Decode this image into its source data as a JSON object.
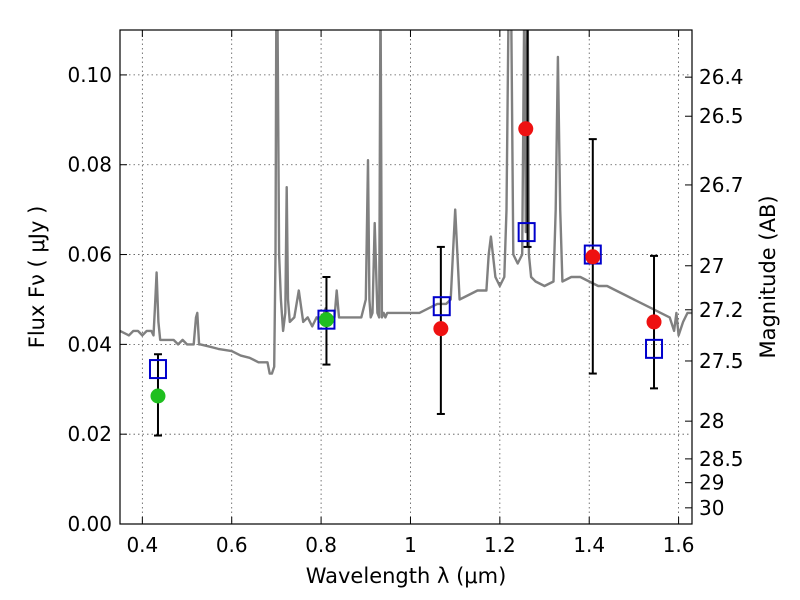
{
  "chart_data": {
    "type": "scatter",
    "title": "",
    "xlabel": "Wavelength  λ (μm)",
    "ylabel": "Flux  Fν  ( μJy )",
    "ylabel_right": "Magnitude (AB)",
    "xlim": [
      0.35,
      1.63
    ],
    "ylim": [
      0.0,
      0.11
    ],
    "grid": true,
    "x_ticks": [
      0.4,
      0.6,
      0.8,
      1.0,
      1.2,
      1.4,
      1.6
    ],
    "x_tick_labels": [
      "0.4",
      "0.6",
      "0.8",
      "1",
      "1.2",
      "1.4",
      "1.6"
    ],
    "y_ticks": [
      0.0,
      0.02,
      0.04,
      0.06,
      0.08,
      0.1
    ],
    "y_tick_labels": [
      "0.00",
      "0.02",
      "0.04",
      "0.06",
      "0.08",
      "0.10"
    ],
    "right_ticks": [
      {
        "flux": 0.0995,
        "label": "26.4"
      },
      {
        "flux": 0.0908,
        "label": "26.5"
      },
      {
        "flux": 0.0755,
        "label": "26.7"
      },
      {
        "flux": 0.0575,
        "label": "27"
      },
      {
        "flux": 0.0477,
        "label": "27.2"
      },
      {
        "flux": 0.0363,
        "label": "27.5"
      },
      {
        "flux": 0.0229,
        "label": "28"
      },
      {
        "flux": 0.0145,
        "label": "28.5"
      },
      {
        "flux": 0.0092,
        "label": "29"
      },
      {
        "flux": 0.0036,
        "label": "30"
      }
    ],
    "series": [
      {
        "kind": "line",
        "color": "#808080",
        "x": [
          0.35,
          0.37,
          0.38,
          0.39,
          0.4,
          0.41,
          0.42,
          0.425,
          0.428,
          0.432,
          0.436,
          0.44,
          0.45,
          0.46,
          0.47,
          0.48,
          0.49,
          0.5,
          0.51,
          0.515,
          0.52,
          0.523,
          0.527,
          0.53,
          0.55,
          0.57,
          0.6,
          0.62,
          0.64,
          0.66,
          0.68,
          0.685,
          0.69,
          0.695,
          0.698,
          0.7,
          0.702,
          0.706,
          0.71,
          0.715,
          0.72,
          0.723,
          0.726,
          0.73,
          0.74,
          0.75,
          0.76,
          0.77,
          0.78,
          0.79,
          0.8,
          0.81,
          0.82,
          0.83,
          0.835,
          0.84,
          0.85,
          0.87,
          0.89,
          0.9,
          0.905,
          0.908,
          0.911,
          0.915,
          0.92,
          0.926,
          0.93,
          0.933,
          0.936,
          0.94,
          0.944,
          0.948,
          0.96,
          0.98,
          1.0,
          1.02,
          1.04,
          1.06,
          1.08,
          1.09,
          1.095,
          1.1,
          1.105,
          1.11,
          1.13,
          1.15,
          1.17,
          1.175,
          1.18,
          1.19,
          1.2,
          1.21,
          1.215,
          1.22,
          1.225,
          1.23,
          1.24,
          1.25,
          1.255,
          1.258,
          1.262,
          1.265,
          1.27,
          1.28,
          1.3,
          1.32,
          1.325,
          1.33,
          1.335,
          1.34,
          1.36,
          1.38,
          1.4,
          1.42,
          1.44,
          1.46,
          1.48,
          1.5,
          1.52,
          1.54,
          1.56,
          1.58,
          1.59,
          1.595,
          1.6,
          1.61,
          1.62,
          1.63
        ],
        "y": [
          0.043,
          0.042,
          0.043,
          0.043,
          0.042,
          0.043,
          0.043,
          0.042,
          0.048,
          0.056,
          0.045,
          0.041,
          0.041,
          0.041,
          0.041,
          0.04,
          0.041,
          0.04,
          0.04,
          0.04,
          0.046,
          0.047,
          0.04,
          0.04,
          0.0395,
          0.039,
          0.0385,
          0.0375,
          0.037,
          0.036,
          0.036,
          0.0335,
          0.0335,
          0.035,
          0.06,
          0.12,
          0.12,
          0.06,
          0.05,
          0.043,
          0.047,
          0.075,
          0.05,
          0.045,
          0.046,
          0.052,
          0.045,
          0.046,
          0.044,
          0.046,
          0.045,
          0.048,
          0.046,
          0.046,
          0.052,
          0.046,
          0.046,
          0.046,
          0.046,
          0.05,
          0.081,
          0.05,
          0.046,
          0.047,
          0.067,
          0.047,
          0.046,
          0.12,
          0.046,
          0.047,
          0.046,
          0.047,
          0.047,
          0.047,
          0.047,
          0.047,
          0.048,
          0.049,
          0.049,
          0.05,
          0.06,
          0.07,
          0.06,
          0.05,
          0.051,
          0.052,
          0.052,
          0.06,
          0.064,
          0.055,
          0.053,
          0.055,
          0.07,
          0.12,
          0.12,
          0.06,
          0.058,
          0.06,
          0.12,
          0.065,
          0.12,
          0.06,
          0.055,
          0.054,
          0.053,
          0.054,
          0.07,
          0.104,
          0.07,
          0.054,
          0.055,
          0.055,
          0.054,
          0.053,
          0.053,
          0.052,
          0.051,
          0.05,
          0.049,
          0.048,
          0.047,
          0.046,
          0.043,
          0.047,
          0.042,
          0.045,
          0.047,
          0.047
        ]
      },
      {
        "kind": "points",
        "marker": "square",
        "color": "#0000cc",
        "x": [
          0.435,
          0.812,
          1.07,
          1.26,
          1.408,
          1.545
        ],
        "y": [
          0.0345,
          0.0455,
          0.0485,
          0.065,
          0.06,
          0.039
        ]
      },
      {
        "kind": "points",
        "marker": "circle",
        "color": "#1fbf1f",
        "x": [
          0.435,
          0.812
        ],
        "y": [
          0.0285,
          0.0455
        ]
      },
      {
        "kind": "points",
        "marker": "circle",
        "color": "#ee1111",
        "x": [
          1.068,
          1.258,
          1.408,
          1.545
        ],
        "y": [
          0.0435,
          0.088,
          0.0595,
          0.045
        ]
      },
      {
        "kind": "errorbars",
        "color": "#000000",
        "x": [
          0.435,
          0.812,
          1.068,
          1.262,
          1.408,
          1.545
        ],
        "low": [
          0.0197,
          0.0355,
          0.0245,
          0.0617,
          0.0335,
          0.0302
        ],
        "high": [
          0.0378,
          0.055,
          0.0617,
          0.12,
          0.0857,
          0.0597
        ]
      }
    ]
  }
}
